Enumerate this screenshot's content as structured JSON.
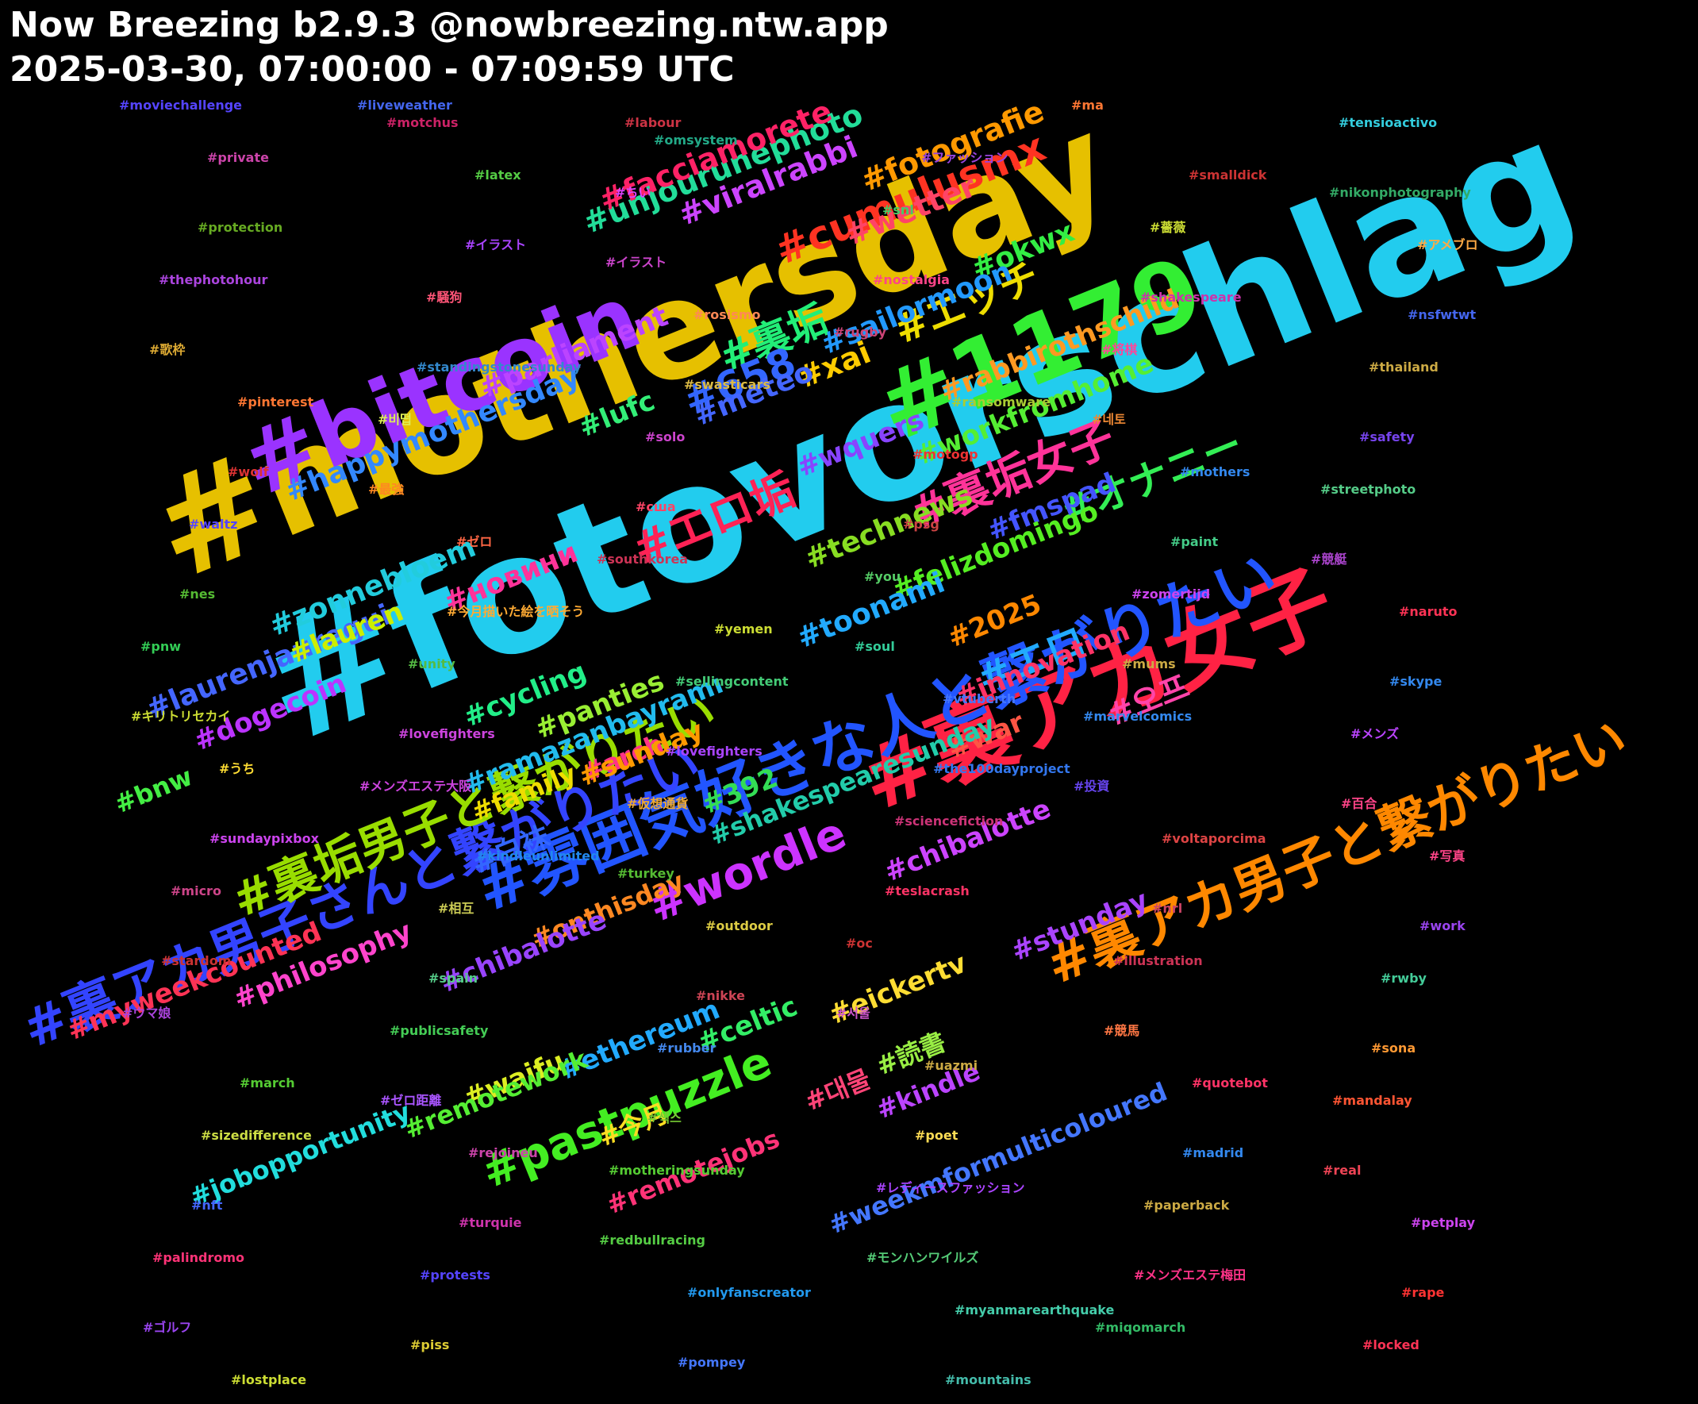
{
  "header": {
    "title": "Now Breezing b2.9.3 @nowbreezing.ntw.app",
    "subtitle": "2025-03-30, 07:00:00 - 07:09:59 UTC"
  },
  "tags": [
    {
      "text": "#fotovorschlag",
      "color": "#22ccee"
    },
    {
      "text": "#mothersday",
      "color": "#e6c000"
    },
    {
      "text": "#bitcoin",
      "color": "#9a33ff"
    },
    {
      "text": "#1179",
      "color": "#33ee33"
    },
    {
      "text": "#裏アカ女子",
      "color": "#ff2244"
    },
    {
      "text": "#雰囲気好きな人と繋がりたい",
      "color": "#2255ff"
    },
    {
      "text": "#裏アカ男子さんと繋がりたい",
      "color": "#3344ff"
    },
    {
      "text": "#裏アカ男子と繋がりたい",
      "color": "#ff8800"
    },
    {
      "text": "#裏垢男子と繋がりたい",
      "color": "#99dd00"
    },
    {
      "text": "#wordle",
      "color": "#cc33ff"
    },
    {
      "text": "#pastpuzzle",
      "color": "#44ee22"
    },
    {
      "text": "#裏垢女子",
      "color": "#ff3399"
    },
    {
      "text": "#エロ垢",
      "color": "#ff2255"
    },
    {
      "text": "#裏垢",
      "color": "#22ee77"
    },
    {
      "text": "#エッチ",
      "color": "#eedd00"
    },
    {
      "text": "#cumulusmx",
      "color": "#ff3322"
    },
    {
      "text": "#658",
      "color": "#3366ff"
    },
    {
      "text": "#オナニー",
      "color": "#33ee55"
    },
    {
      "text": "#エロ",
      "color": "#22aaff"
    },
    {
      "text": "#오프",
      "color": "#ff44aa"
    },
    {
      "text": "#unjourunephoto",
      "color": "#22dd99"
    },
    {
      "text": "#facciamorete",
      "color": "#ff2266"
    },
    {
      "text": "#viralrabbi",
      "color": "#cc44ff"
    },
    {
      "text": "#fotografie",
      "color": "#ff9900"
    },
    {
      "text": "#wetter",
      "color": "#ff4466"
    },
    {
      "text": "#okwx",
      "color": "#33ee44"
    },
    {
      "text": "#sailormoon",
      "color": "#2299ff"
    },
    {
      "text": "#parliament",
      "color": "#bb44ff"
    },
    {
      "text": "#xai",
      "color": "#ffcc00"
    },
    {
      "text": "#meteo",
      "color": "#4466ff"
    },
    {
      "text": "#rabbirothschild",
      "color": "#ff9922"
    },
    {
      "text": "#happymothersday",
      "color": "#3388ff"
    },
    {
      "text": "#wquers",
      "color": "#8844ff"
    },
    {
      "text": "#lufc",
      "color": "#33ee77"
    },
    {
      "text": "#workfromhome",
      "color": "#55ee33"
    },
    {
      "text": "#fmspad",
      "color": "#4455ff"
    },
    {
      "text": "#новини",
      "color": "#ff3399"
    },
    {
      "text": "#technews",
      "color": "#88dd22"
    },
    {
      "text": "#zonnebloem",
      "color": "#22ccdd"
    },
    {
      "text": "#felizdomingo",
      "color": "#55ee22"
    },
    {
      "text": "#laurenjauregui",
      "color": "#4466ff"
    },
    {
      "text": "#toonami",
      "color": "#22aaff"
    },
    {
      "text": "#lauren",
      "color": "#ccee00"
    },
    {
      "text": "#2025",
      "color": "#ff8800"
    },
    {
      "text": "#innovation",
      "color": "#ff3366"
    },
    {
      "text": "#cycling",
      "color": "#22ee88"
    },
    {
      "text": "#dogecoin",
      "color": "#bb33ff"
    },
    {
      "text": "#panties",
      "color": "#99ee33"
    },
    {
      "text": "#war",
      "color": "#ff5544"
    },
    {
      "text": "#ramazanbayramı",
      "color": "#22bbee"
    },
    {
      "text": "#bnw",
      "color": "#44ee44"
    },
    {
      "text": "#arch",
      "color": "#ff3388"
    },
    {
      "text": "#sunday",
      "color": "#ff9900"
    },
    {
      "text": "#family",
      "color": "#eedd00"
    },
    {
      "text": "#392",
      "color": "#33dd55"
    },
    {
      "text": "#白袜",
      "color": "#3366ff"
    },
    {
      "text": "#shakespearesunday",
      "color": "#22ccaa"
    },
    {
      "text": "#onthisday",
      "color": "#ff8822"
    },
    {
      "text": "#chibalotte",
      "color": "#cc44ff"
    },
    {
      "text": "#chibalotte",
      "color": "#9944ff"
    },
    {
      "text": "#myweekcounted",
      "color": "#ff3355"
    },
    {
      "text": "#philosophy",
      "color": "#ff44cc"
    },
    {
      "text": "#stunday",
      "color": "#aa44ff"
    },
    {
      "text": "#eickertv",
      "color": "#ffdd33"
    },
    {
      "text": "#celtic",
      "color": "#33ee66"
    },
    {
      "text": "#waifu",
      "color": "#ddee22"
    },
    {
      "text": "#読書",
      "color": "#99ee44"
    },
    {
      "text": "#ethereum",
      "color": "#22aaff"
    },
    {
      "text": "#대물",
      "color": "#ff4477"
    },
    {
      "text": "#kindle",
      "color": "#bb44ff"
    },
    {
      "text": "#remotework",
      "color": "#55ee33"
    },
    {
      "text": "#今月",
      "color": "#ffdd22"
    },
    {
      "text": "#jobopportunity",
      "color": "#22dddd"
    },
    {
      "text": "#weekmformulticoloured",
      "color": "#4477ff"
    },
    {
      "text": "#remotejobs",
      "color": "#ff3377"
    },
    {
      "text": "#moviechallenge",
      "color": "#5544ff"
    },
    {
      "text": "#motchus",
      "color": "#cc2266"
    },
    {
      "text": "#omsystem",
      "color": "#22aa88"
    },
    {
      "text": "#ファッション",
      "color": "#9944dd"
    },
    {
      "text": "#smalldick",
      "color": "#cc3333"
    },
    {
      "text": "#nikonphotography",
      "color": "#33aa66"
    },
    {
      "text": "#protection",
      "color": "#66aa22"
    },
    {
      "text": "#イラスト",
      "color": "#aa44ff"
    },
    {
      "text": "#イラスト",
      "color": "#cc44cc"
    },
    {
      "text": "#nostalgia",
      "color": "#ff4488"
    },
    {
      "text": "#shakespeare",
      "color": "#cc33aa"
    },
    {
      "text": "#nsfwtwt",
      "color": "#4466ee"
    },
    {
      "text": "#歌枠",
      "color": "#ddaa33"
    },
    {
      "text": "#standingstonesunday",
      "color": "#3388cc"
    },
    {
      "text": "#swasticars",
      "color": "#ddbb44"
    },
    {
      "text": "#ransomware",
      "color": "#aacc33"
    },
    {
      "text": "#네토",
      "color": "#ee8833"
    },
    {
      "text": "#safety",
      "color": "#7744ee"
    },
    {
      "text": "#wolf",
      "color": "#dd3333"
    },
    {
      "text": "#最強",
      "color": "#ff8822"
    },
    {
      "text": "#сша",
      "color": "#ff4466"
    },
    {
      "text": "#psg",
      "color": "#cc4444"
    },
    {
      "text": "#paint",
      "color": "#44cc88"
    },
    {
      "text": "#競艇",
      "color": "#aa44cc"
    },
    {
      "text": "#nes",
      "color": "#55bb33"
    },
    {
      "text": "#今月描いた絵を晒そう",
      "color": "#ffaa33"
    },
    {
      "text": "#yemen",
      "color": "#ccdd33"
    },
    {
      "text": "#soul",
      "color": "#33cc99"
    },
    {
      "text": "#mums",
      "color": "#ccaa44"
    },
    {
      "text": "#skype",
      "color": "#3388ee"
    },
    {
      "text": "#キリトリセカイ",
      "color": "#ccdd33"
    },
    {
      "text": "#lovefighters",
      "color": "#cc44dd"
    },
    {
      "text": "#lovefighters",
      "color": "#aa44ff"
    },
    {
      "text": "#the100dayproject",
      "color": "#3377ee"
    },
    {
      "text": "#投資",
      "color": "#6644ee"
    },
    {
      "text": "#百合",
      "color": "#ff4488"
    },
    {
      "text": "#sundaypixbox",
      "color": "#cc44ee"
    },
    {
      "text": "#kindleunlimited",
      "color": "#2288ee"
    },
    {
      "text": "#turkey",
      "color": "#55bb33"
    },
    {
      "text": "#teslacrash",
      "color": "#ff3366"
    },
    {
      "text": "#nrl",
      "color": "#cc4466"
    },
    {
      "text": "#work",
      "color": "#9944ee"
    },
    {
      "text": "#stardom",
      "color": "#cc3333"
    },
    {
      "text": "#spain",
      "color": "#55cc88"
    },
    {
      "text": "#nikke",
      "color": "#cc4455"
    },
    {
      "text": "#서울",
      "color": "#cc55cc"
    },
    {
      "text": "#競馬",
      "color": "#ff7744"
    },
    {
      "text": "#sona",
      "color": "#ff9933"
    },
    {
      "text": "#march",
      "color": "#55cc33"
    },
    {
      "text": "#ゼロ距離",
      "color": "#aa55ff"
    },
    {
      "text": "#섹스",
      "color": "#77cc33"
    },
    {
      "text": "#poet",
      "color": "#ffdd55"
    },
    {
      "text": "#madrid",
      "color": "#3388ee"
    },
    {
      "text": "#real",
      "color": "#ee4455"
    },
    {
      "text": "#nft",
      "color": "#4466ff"
    },
    {
      "text": "#turquie",
      "color": "#cc33aa"
    },
    {
      "text": "#redbullracing",
      "color": "#55cc44"
    },
    {
      "text": "#モンハンワイルズ",
      "color": "#55cc77"
    },
    {
      "text": "#メンズエステ梅田",
      "color": "#ff3388"
    },
    {
      "text": "#rape",
      "color": "#ff3333"
    },
    {
      "text": "#ゴルフ",
      "color": "#9944ee"
    },
    {
      "text": "#piss",
      "color": "#ddcc33"
    },
    {
      "text": "#pompey",
      "color": "#4477ff"
    },
    {
      "text": "#mountains",
      "color": "#44bbaa"
    },
    {
      "text": "#ma",
      "color": "#ff7733"
    },
    {
      "text": "#tensioactivo",
      "color": "#33ccdd"
    },
    {
      "text": "#private",
      "color": "#cc44aa"
    },
    {
      "text": "#latex",
      "color": "#55cc44"
    },
    {
      "text": "#ちい",
      "color": "#dd44ff"
    },
    {
      "text": "#snl",
      "color": "#44cc66"
    },
    {
      "text": "#薔薇",
      "color": "#ccdd33"
    },
    {
      "text": "#アメブロ",
      "color": "#ffaa44"
    },
    {
      "text": "#thephotohour",
      "color": "#aa44dd"
    },
    {
      "text": "#騒狗",
      "color": "#ff5577"
    },
    {
      "text": "#rosismo",
      "color": "#ff8855"
    },
    {
      "text": "#rugby",
      "color": "#cc4477"
    },
    {
      "text": "#将棋",
      "color": "#ff4499"
    },
    {
      "text": "#thailand",
      "color": "#ccaa44"
    },
    {
      "text": "#pinterest",
      "color": "#ff7733"
    },
    {
      "text": "#비떱",
      "color": "#ddee55"
    },
    {
      "text": "#solo",
      "color": "#cc44cc"
    },
    {
      "text": "#motogp",
      "color": "#ee3333"
    },
    {
      "text": "#mothers",
      "color": "#3388ee"
    },
    {
      "text": "#streetphoto",
      "color": "#55cc88"
    },
    {
      "text": "#waltz",
      "color": "#5544ff"
    },
    {
      "text": "#ゼロ",
      "color": "#ff6644"
    },
    {
      "text": "#southkorea",
      "color": "#cc3355"
    },
    {
      "text": "#you",
      "color": "#55cc66"
    },
    {
      "text": "#zomertijd",
      "color": "#cc44ee"
    },
    {
      "text": "#naruto",
      "color": "#ff3355"
    },
    {
      "text": "#pnw",
      "color": "#33cc55"
    },
    {
      "text": "#unity",
      "color": "#55bb44"
    },
    {
      "text": "#sellingcontent",
      "color": "#44cc77"
    },
    {
      "text": "#vtuberth",
      "color": "#4477ff"
    },
    {
      "text": "#marvelcomics",
      "color": "#3388ee"
    },
    {
      "text": "#メンズ",
      "color": "#bb44ff"
    },
    {
      "text": "#うち",
      "color": "#ffdd33"
    },
    {
      "text": "#メンズエステ大阪",
      "color": "#cc44dd"
    },
    {
      "text": "#仮想通貨",
      "color": "#eeaa33"
    },
    {
      "text": "#sciencefiction",
      "color": "#cc3377"
    },
    {
      "text": "#voltaporcima",
      "color": "#dd4444"
    },
    {
      "text": "#写真",
      "color": "#ff4488"
    },
    {
      "text": "#micro",
      "color": "#cc4488"
    },
    {
      "text": "#相互",
      "color": "#cccc55"
    },
    {
      "text": "#outdoor",
      "color": "#ddcc44"
    },
    {
      "text": "#oc",
      "color": "#cc3333"
    },
    {
      "text": "#illustration",
      "color": "#cc3355"
    },
    {
      "text": "#rwby",
      "color": "#44cc99"
    },
    {
      "text": "#ウマ娘",
      "color": "#aa44dd"
    },
    {
      "text": "#publicsafety",
      "color": "#44cc55"
    },
    {
      "text": "#rubber",
      "color": "#4488ee"
    },
    {
      "text": "#uazmi",
      "color": "#ccaa44"
    },
    {
      "text": "#quotebot",
      "color": "#ff3366"
    },
    {
      "text": "#mandalay",
      "color": "#ff5533"
    },
    {
      "text": "#sizedifference",
      "color": "#ccdd44"
    },
    {
      "text": "#rejoineu",
      "color": "#cc44aa"
    },
    {
      "text": "#motheringsunday",
      "color": "#55cc33"
    },
    {
      "text": "#レディースファッション",
      "color": "#aa44ff"
    },
    {
      "text": "#paperback",
      "color": "#ccaa44"
    },
    {
      "text": "#petplay",
      "color": "#cc44ee"
    },
    {
      "text": "#palindromo",
      "color": "#ff3377"
    },
    {
      "text": "#protests",
      "color": "#5544ff"
    },
    {
      "text": "#onlyfanscreator",
      "color": "#2299ee"
    },
    {
      "text": "#myanmarearthquake",
      "color": "#44ccaa"
    },
    {
      "text": "#miqomarch",
      "color": "#33bb66"
    },
    {
      "text": "#locked",
      "color": "#ff3355"
    },
    {
      "text": "#lostplace",
      "color": "#ccdd33"
    },
    {
      "text": "#liveweather",
      "color": "#4466ee"
    },
    {
      "text": "#labour",
      "color": "#cc3344"
    }
  ]
}
